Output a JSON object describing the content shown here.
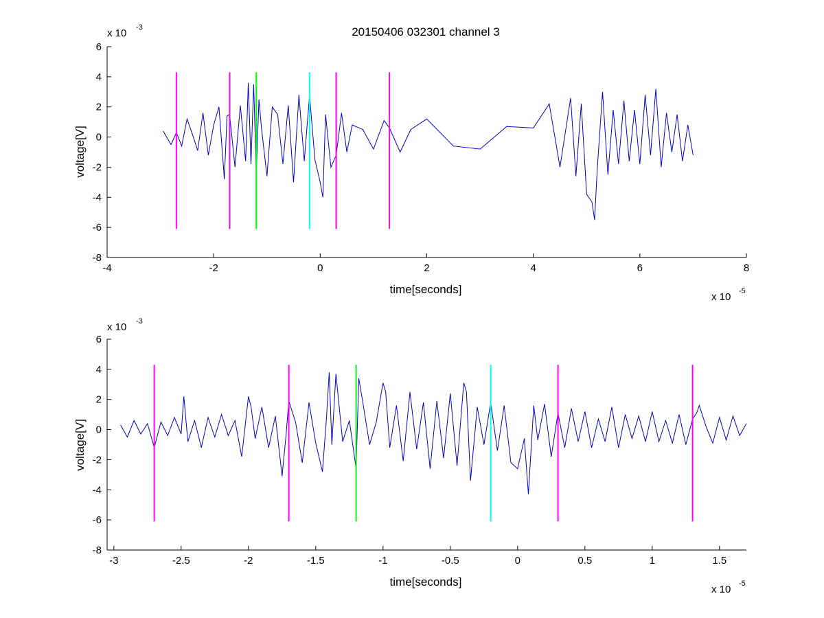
{
  "figure": {
    "title": "20150406 032301 channel 3",
    "background": "#ffffff",
    "trace_color": "#0000cc"
  },
  "chart_data": [
    {
      "type": "line",
      "title": "20150406 032301 channel 3",
      "xlabel": "time[seconds]",
      "ylabel": "voltage[V]",
      "x_exponent_base": "x 10",
      "x_exponent_power": "-5",
      "y_exponent_base": "x 10",
      "y_exponent_power": "-3",
      "xlim": [
        -4,
        8
      ],
      "ylim": [
        -8,
        6
      ],
      "xticks": [
        -4,
        -2,
        0,
        2,
        4,
        6,
        8
      ],
      "xtick_labels": [
        "-4",
        "-2",
        "0",
        "2",
        "4",
        "6",
        "8"
      ],
      "yticks": [
        -8,
        -6,
        -4,
        -2,
        0,
        2,
        4,
        6
      ],
      "ytick_labels": [
        "-8",
        "-6",
        "-4",
        "-2",
        "0",
        "2",
        "4",
        "6"
      ],
      "grid": false,
      "series": [
        {
          "color": "#0000cc",
          "x": [
            -2.95,
            -2.8,
            -2.7,
            -2.6,
            -2.5,
            -2.4,
            -2.3,
            -2.2,
            -2.1,
            -2.0,
            -1.9,
            -1.8,
            -1.75,
            -1.7,
            -1.6,
            -1.5,
            -1.4,
            -1.35,
            -1.3,
            -1.25,
            -1.2,
            -1.15,
            -1.1,
            -1.0,
            -0.9,
            -0.8,
            -0.7,
            -0.6,
            -0.5,
            -0.4,
            -0.3,
            -0.2,
            -0.1,
            0.0,
            0.05,
            0.1,
            0.2,
            0.3,
            0.4,
            0.5,
            0.6,
            0.8,
            1.0,
            1.2,
            1.3,
            1.5,
            1.7,
            2.0,
            2.5,
            3.0,
            3.5,
            4.0,
            4.3,
            4.5,
            4.7,
            4.8,
            4.9,
            5.0,
            5.1,
            5.15,
            5.2,
            5.3,
            5.4,
            5.5,
            5.6,
            5.7,
            5.8,
            5.9,
            6.0,
            6.1,
            6.2,
            6.3,
            6.4,
            6.5,
            6.6,
            6.7,
            6.8,
            6.9,
            7.0
          ],
          "y": [
            0.4,
            -0.5,
            0.3,
            -0.6,
            1.2,
            0.2,
            -0.9,
            1.6,
            -1.2,
            0.8,
            2.0,
            -2.8,
            1.4,
            1.5,
            -2.0,
            2.1,
            -1.6,
            3.6,
            -1.8,
            3.5,
            -2.4,
            2.5,
            0.5,
            -2.6,
            2.0,
            1.5,
            -1.8,
            2.1,
            -3.0,
            2.8,
            -1.6,
            2.8,
            -1.5,
            -3.0,
            -4.0,
            1.5,
            -2.0,
            -1.2,
            1.6,
            -1.0,
            0.8,
            0.5,
            -0.8,
            1.1,
            0.6,
            -1.0,
            0.5,
            1.2,
            -0.6,
            -0.8,
            0.7,
            0.6,
            2.2,
            -2.0,
            2.6,
            -2.6,
            2.2,
            -3.8,
            -4.3,
            -5.5,
            -2.1,
            3.0,
            -2.5,
            1.8,
            -1.8,
            2.4,
            -1.6,
            1.8,
            -1.8,
            2.8,
            -1.2,
            3.2,
            -2.0,
            1.6,
            -1.0,
            1.5,
            -1.6,
            0.8,
            -1.2
          ]
        }
      ],
      "markers": [
        {
          "x": -2.7,
          "color": "#ff00ff",
          "y1": -6.1,
          "y2": 4.3
        },
        {
          "x": -1.7,
          "color": "#ff00ff",
          "y1": -6.1,
          "y2": 4.3
        },
        {
          "x": -1.2,
          "color": "#00ff00",
          "y1": -6.1,
          "y2": 4.3
        },
        {
          "x": -0.2,
          "color": "#00ffff",
          "y1": -6.1,
          "y2": 4.3
        },
        {
          "x": 0.3,
          "color": "#ff00ff",
          "y1": -6.1,
          "y2": 4.3
        },
        {
          "x": 1.3,
          "color": "#ff00ff",
          "y1": -6.1,
          "y2": 4.3
        }
      ]
    },
    {
      "type": "line",
      "title": "",
      "xlabel": "time[seconds]",
      "ylabel": "voltage[V]",
      "x_exponent_base": "x 10",
      "x_exponent_power": "-5",
      "y_exponent_base": "x 10",
      "y_exponent_power": "-3",
      "xlim": [
        -3.05,
        1.7
      ],
      "ylim": [
        -8,
        6
      ],
      "xticks": [
        -3,
        -2.5,
        -2,
        -1.5,
        -1,
        -0.5,
        0,
        0.5,
        1,
        1.5
      ],
      "xtick_labels": [
        "-3",
        "-2.5",
        "-2",
        "-1.5",
        "-1",
        "-0.5",
        "0",
        "0.5",
        "1",
        "1.5"
      ],
      "yticks": [
        -8,
        -6,
        -4,
        -2,
        0,
        2,
        4,
        6
      ],
      "ytick_labels": [
        "-8",
        "-6",
        "-4",
        "-2",
        "0",
        "2",
        "4",
        "6"
      ],
      "grid": false,
      "series": [
        {
          "color": "#0000cc",
          "x": [
            -2.95,
            -2.9,
            -2.85,
            -2.8,
            -2.75,
            -2.7,
            -2.65,
            -2.6,
            -2.55,
            -2.5,
            -2.48,
            -2.45,
            -2.4,
            -2.35,
            -2.3,
            -2.25,
            -2.2,
            -2.15,
            -2.1,
            -2.05,
            -2.0,
            -1.98,
            -1.95,
            -1.9,
            -1.85,
            -1.8,
            -1.75,
            -1.72,
            -1.7,
            -1.65,
            -1.6,
            -1.55,
            -1.5,
            -1.45,
            -1.42,
            -1.4,
            -1.38,
            -1.35,
            -1.3,
            -1.25,
            -1.2,
            -1.18,
            -1.15,
            -1.1,
            -1.05,
            -1.0,
            -0.98,
            -0.95,
            -0.9,
            -0.85,
            -0.8,
            -0.75,
            -0.7,
            -0.65,
            -0.6,
            -0.55,
            -0.5,
            -0.45,
            -0.4,
            -0.38,
            -0.35,
            -0.3,
            -0.25,
            -0.2,
            -0.15,
            -0.1,
            -0.05,
            0.0,
            0.05,
            0.08,
            0.12,
            0.15,
            0.2,
            0.25,
            0.3,
            0.35,
            0.4,
            0.45,
            0.5,
            0.55,
            0.6,
            0.65,
            0.7,
            0.75,
            0.8,
            0.85,
            0.9,
            0.95,
            1.0,
            1.05,
            1.1,
            1.15,
            1.2,
            1.25,
            1.3,
            1.33,
            1.35,
            1.4,
            1.45,
            1.5,
            1.55,
            1.6,
            1.65,
            1.7
          ],
          "y": [
            0.3,
            -0.5,
            0.6,
            -0.3,
            0.4,
            -1.2,
            0.5,
            -0.4,
            0.8,
            -0.3,
            2.2,
            -0.8,
            0.6,
            -1.2,
            0.8,
            -0.5,
            1.0,
            -0.4,
            0.6,
            -1.8,
            2.2,
            1.5,
            -0.6,
            1.5,
            -1.2,
            0.9,
            -3.1,
            -0.3,
            1.9,
            0.5,
            -2.2,
            1.8,
            -0.9,
            -2.8,
            0.8,
            3.8,
            -1.0,
            3.7,
            -0.8,
            0.6,
            -2.6,
            3.4,
            1.8,
            -1.0,
            0.5,
            3.1,
            2.5,
            -1.2,
            1.6,
            -2.1,
            2.5,
            -1.3,
            1.8,
            -2.6,
            1.9,
            -1.9,
            2.4,
            -2.4,
            3.1,
            2.5,
            -3.4,
            1.5,
            -1.0,
            1.8,
            -1.4,
            1.6,
            -2.2,
            -2.6,
            -0.6,
            -4.3,
            1.6,
            -0.7,
            1.7,
            -1.8,
            1.1,
            -1.2,
            1.4,
            -0.8,
            1.2,
            -1.2,
            0.7,
            -0.8,
            1.5,
            -1.2,
            1.0,
            -0.6,
            0.9,
            -0.8,
            1.2,
            -0.8,
            0.6,
            -0.9,
            1.0,
            -1.0,
            0.7,
            1.1,
            1.6,
            0.2,
            -0.9,
            0.8,
            -0.7,
            0.9,
            -0.4,
            0.4
          ]
        }
      ],
      "markers": [
        {
          "x": -2.7,
          "color": "#ff00ff",
          "y1": -6.1,
          "y2": 4.3
        },
        {
          "x": -1.7,
          "color": "#ff00ff",
          "y1": -6.1,
          "y2": 4.3
        },
        {
          "x": -1.2,
          "color": "#00ff00",
          "y1": -6.1,
          "y2": 4.3
        },
        {
          "x": -0.2,
          "color": "#00ffff",
          "y1": -6.1,
          "y2": 4.3
        },
        {
          "x": 0.3,
          "color": "#ff00ff",
          "y1": -6.1,
          "y2": 4.3
        },
        {
          "x": 1.3,
          "color": "#ff00ff",
          "y1": -6.1,
          "y2": 4.3
        }
      ]
    }
  ]
}
